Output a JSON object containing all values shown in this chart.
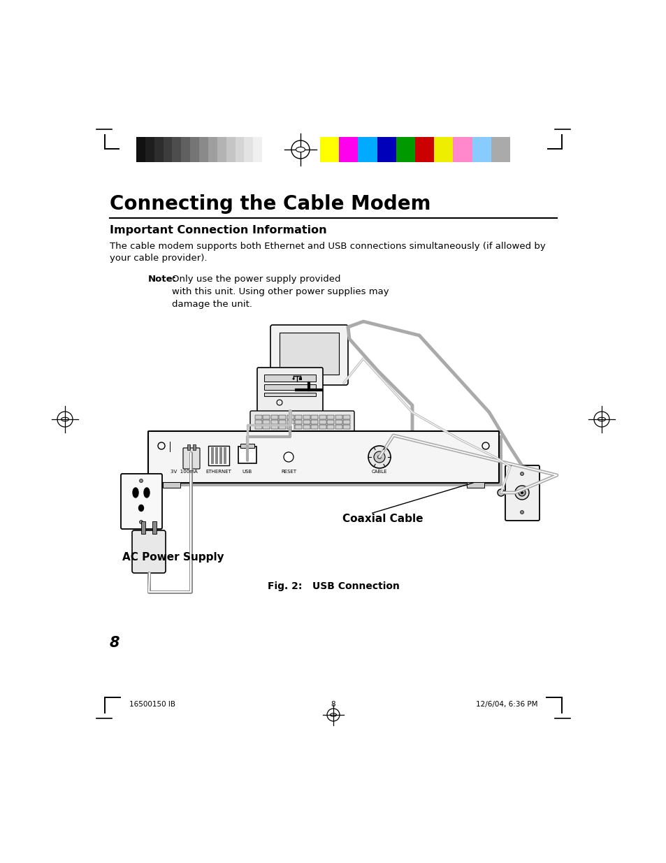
{
  "bg_color": "#ffffff",
  "title": "Connecting the Cable Modem",
  "section_heading": "Important Connection Information",
  "body_text": "The cable modem supports both Ethernet and USB connections simultaneously (if allowed by\nyour cable provider).",
  "note_bold": "Note:",
  "note_text": "Only use the power supply provided\nwith this unit. Using other power supplies may\ndamage the unit.",
  "fig_caption": "Fig. 2:   USB Connection",
  "label_coaxial": "Coaxial Cable",
  "label_ac": "AC Power Supply",
  "page_number": "8",
  "footer_left": "16500150 IB",
  "footer_center": "8",
  "footer_right": "12/6/04, 6:36 PM",
  "grayscale_colors": [
    "#111111",
    "#1e1e1e",
    "#2d2d2d",
    "#3c3c3c",
    "#4d4d4d",
    "#606060",
    "#757575",
    "#8a8a8a",
    "#9f9f9f",
    "#b3b3b3",
    "#c5c5c5",
    "#d5d5d5",
    "#e3e3e3",
    "#f0f0f0",
    "#ffffff"
  ],
  "color_bars": [
    "#ffff00",
    "#ff00ee",
    "#00aaff",
    "#0000bb",
    "#009900",
    "#cc0000",
    "#eeee00",
    "#ff88cc",
    "#88ccff",
    "#aaaaaa"
  ]
}
